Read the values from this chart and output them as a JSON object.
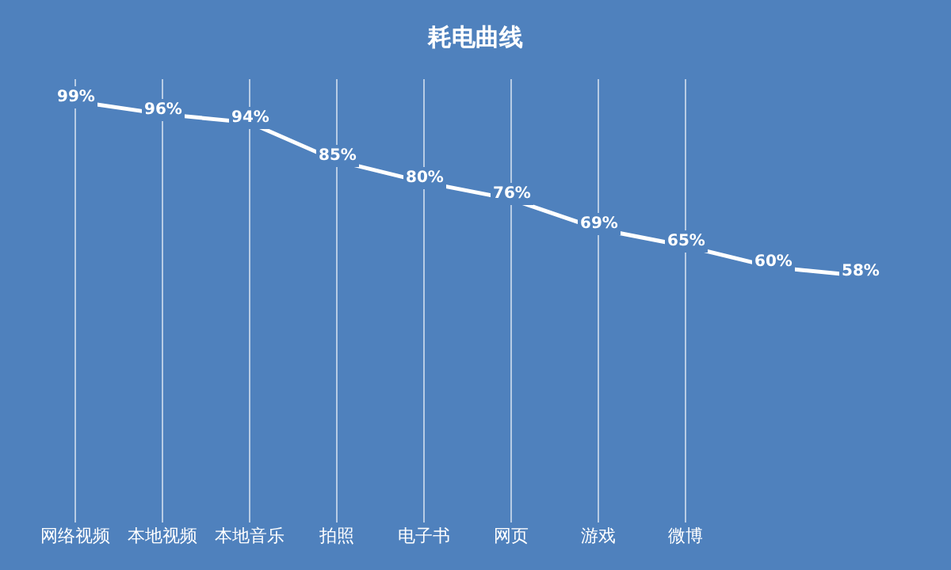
{
  "chart_data": {
    "type": "line",
    "title": "耗电曲线",
    "categories": [
      "网络视频",
      "本地视频",
      "本地音乐",
      "拍照",
      "电子书",
      "网页",
      "游戏",
      "微博",
      null,
      null
    ],
    "series": [
      {
        "color": "#ffffff",
        "values": [
          99,
          96,
          94,
          85,
          80,
          76,
          69,
          65,
          60,
          58
        ],
        "value_labels": [
          "99%",
          "96%",
          "94%",
          "85%",
          "80%",
          "76%",
          "69%",
          "65%",
          "60%",
          "58%"
        ]
      }
    ],
    "grid": "x",
    "marker": "none",
    "line_style": "solid",
    "tick_labels": "x"
  }
}
